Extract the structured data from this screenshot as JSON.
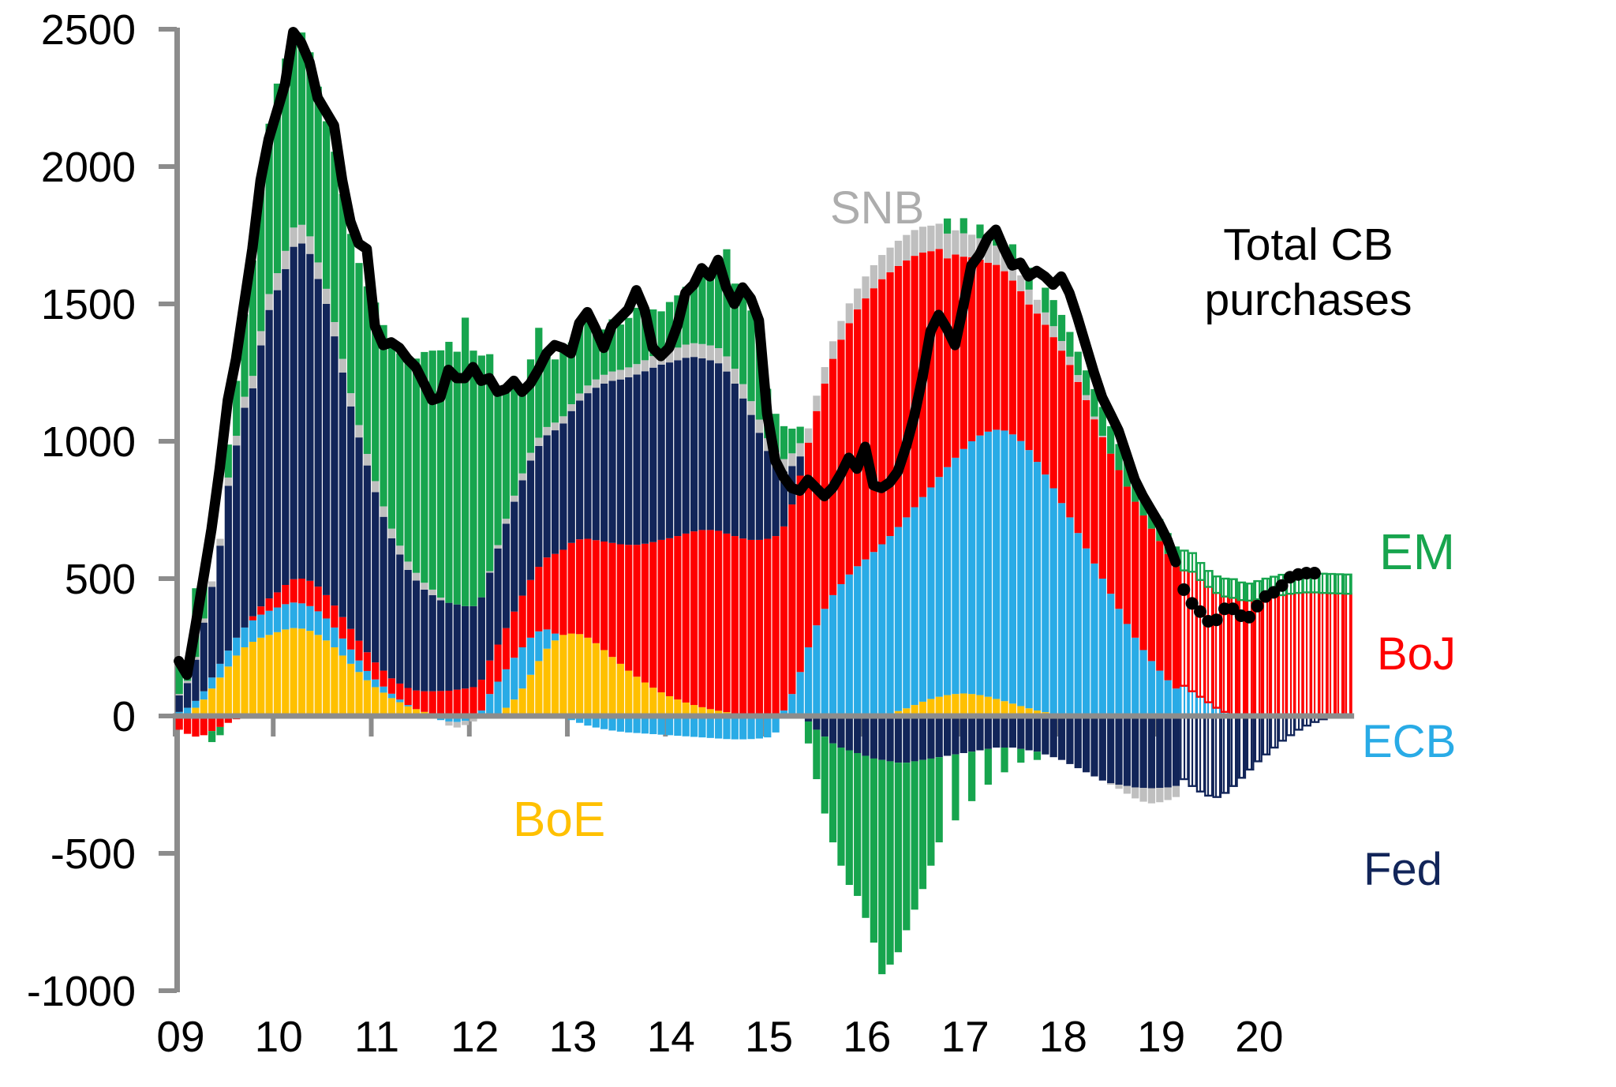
{
  "annotations": {
    "snb": "SNB",
    "total_line": "Total CB purchases",
    "em": "EM",
    "boj": "BoJ",
    "ecb": "ECB",
    "fed": "Fed",
    "boe": "BoE"
  },
  "colors": {
    "em_green": "#17a54e",
    "boj_red": "#fe0000",
    "ecb_blue": "#29abe6",
    "fed_navy": "#122559",
    "boe_yellow": "#ffc000",
    "snb_gray": "#bfbfbf",
    "total_black": "#000000",
    "axis_gray": "#8c8c8c"
  },
  "chart_data": {
    "type": "bar",
    "subtype": "monthly-stacked-bars-with-total-line",
    "x_start": "2009-01",
    "x_freq_months": 1,
    "n_points": 144,
    "x_tick_labels": [
      "09",
      "10",
      "11",
      "12",
      "13",
      "14",
      "15",
      "16",
      "17",
      "18",
      "19",
      "20"
    ],
    "ylim": [
      -1000,
      2500
    ],
    "y_ticks": [
      2500,
      2000,
      1500,
      1000,
      500,
      0,
      -500,
      -1000
    ],
    "grid": false,
    "legend_position": "labels-on-chart",
    "stack_order": [
      "BoE",
      "ECB",
      "BoJ",
      "Fed",
      "SNB",
      "EM"
    ],
    "forecast_start_index": 123,
    "series": [
      {
        "name": "BoE",
        "color": "#ffc000",
        "values": [
          0,
          10,
          30,
          60,
          100,
          140,
          180,
          220,
          250,
          270,
          285,
          295,
          305,
          315,
          320,
          318,
          310,
          295,
          275,
          250,
          220,
          190,
          160,
          130,
          105,
          85,
          65,
          50,
          35,
          25,
          15,
          8,
          3,
          0,
          0,
          0,
          0,
          0,
          0,
          10,
          30,
          60,
          100,
          150,
          200,
          245,
          275,
          295,
          300,
          298,
          285,
          265,
          240,
          215,
          190,
          165,
          143,
          122,
          103,
          86,
          72,
          60,
          49,
          40,
          32,
          25,
          19,
          14,
          10,
          6,
          3,
          1,
          0,
          0,
          0,
          0,
          0,
          0,
          0,
          0,
          0,
          0,
          0,
          0,
          0,
          2,
          5,
          10,
          18,
          28,
          40,
          52,
          62,
          70,
          76,
          80,
          82,
          80,
          76,
          70,
          62,
          54,
          45,
          36,
          28,
          20,
          14,
          9,
          5,
          3,
          1,
          0,
          0,
          0,
          0,
          0,
          0,
          0,
          0,
          0,
          0,
          0,
          0,
          0,
          0,
          0,
          0,
          0,
          0,
          0,
          0,
          0,
          0,
          0,
          0,
          0,
          0,
          0,
          0,
          0,
          0,
          0,
          0,
          0
        ]
      },
      {
        "name": "ECB",
        "color": "#29abe6",
        "values": [
          15,
          20,
          25,
          30,
          40,
          50,
          58,
          65,
          72,
          78,
          84,
          88,
          90,
          92,
          93,
          92,
          90,
          86,
          80,
          72,
          62,
          52,
          42,
          34,
          28,
          22,
          16,
          10,
          5,
          0,
          -5,
          -10,
          -15,
          -20,
          -22,
          -18,
          -10,
          20,
          80,
          115,
          140,
          152,
          150,
          135,
          108,
          70,
          25,
          0,
          -15,
          -25,
          -35,
          -42,
          -48,
          -53,
          -57,
          -60,
          -62,
          -64,
          -66,
          -68,
          -70,
          -72,
          -74,
          -76,
          -78,
          -80,
          -82,
          -84,
          -85,
          -85,
          -84,
          -82,
          -78,
          -60,
          20,
          80,
          160,
          250,
          330,
          390,
          440,
          480,
          515,
          545,
          570,
          595,
          620,
          645,
          670,
          695,
          720,
          745,
          770,
          800,
          830,
          860,
          890,
          920,
          945,
          965,
          980,
          985,
          980,
          965,
          940,
          905,
          865,
          820,
          770,
          720,
          665,
          610,
          555,
          500,
          445,
          390,
          335,
          285,
          240,
          200,
          165,
          130,
          100,
          110,
          90,
          70,
          50,
          30,
          15,
          5,
          0,
          0,
          0,
          0,
          0,
          0,
          0,
          0,
          0,
          0,
          0,
          0,
          0,
          0
        ]
      },
      {
        "name": "BoJ",
        "color": "#fe0000",
        "values": [
          -50,
          -65,
          -75,
          -70,
          -55,
          -40,
          -25,
          -12,
          -3,
          15,
          30,
          45,
          55,
          70,
          85,
          90,
          92,
          90,
          85,
          80,
          78,
          75,
          72,
          68,
          62,
          58,
          56,
          58,
          62,
          68,
          75,
          82,
          88,
          92,
          96,
          100,
          105,
          112,
          122,
          135,
          150,
          168,
          188,
          210,
          235,
          262,
          290,
          310,
          330,
          345,
          360,
          375,
          395,
          415,
          435,
          458,
          480,
          505,
          530,
          555,
          575,
          595,
          615,
          632,
          645,
          652,
          655,
          650,
          645,
          640,
          638,
          640,
          645,
          655,
          670,
          690,
          715,
          745,
          780,
          820,
          860,
          890,
          915,
          935,
          950,
          960,
          965,
          960,
          950,
          935,
          915,
          890,
          860,
          830,
          760,
          740,
          700,
          670,
          640,
          615,
          600,
          580,
          560,
          545,
          530,
          540,
          545,
          550,
          555,
          555,
          550,
          540,
          525,
          515,
          510,
          505,
          500,
          495,
          490,
          482,
          472,
          460,
          445,
          420,
          435,
          425,
          420,
          418,
          420,
          425,
          422,
          420,
          425,
          430,
          435,
          440,
          445,
          448,
          450,
          450,
          448,
          447,
          446,
          445
        ]
      },
      {
        "name": "Fed",
        "color": "#122559",
        "values": [
          60,
          90,
          150,
          250,
          330,
          430,
          600,
          700,
          800,
          830,
          950,
          1050,
          1100,
          1150,
          1210,
          1220,
          1190,
          1120,
          1060,
          980,
          890,
          810,
          740,
          680,
          620,
          560,
          510,
          470,
          430,
          400,
          370,
          350,
          330,
          320,
          310,
          300,
          295,
          300,
          320,
          350,
          380,
          400,
          420,
          435,
          440,
          445,
          450,
          460,
          480,
          505,
          530,
          555,
          575,
          590,
          600,
          610,
          620,
          628,
          635,
          638,
          640,
          640,
          640,
          635,
          625,
          618,
          610,
          590,
          555,
          510,
          455,
          390,
          320,
          260,
          200,
          140,
          70,
          -20,
          -50,
          -75,
          -100,
          -115,
          -125,
          -135,
          -145,
          -155,
          -160,
          -165,
          -170,
          -170,
          -165,
          -160,
          -155,
          -150,
          -145,
          -140,
          -135,
          -130,
          -125,
          -120,
          -115,
          -115,
          -115,
          -120,
          -125,
          -130,
          -140,
          -150,
          -160,
          -175,
          -190,
          -205,
          -220,
          -235,
          -245,
          -250,
          -255,
          -260,
          -262,
          -263,
          -262,
          -260,
          -255,
          -230,
          -255,
          -275,
          -290,
          -295,
          -280,
          -255,
          -225,
          -195,
          -165,
          -140,
          -115,
          -90,
          -70,
          -50,
          -35,
          -22,
          -12,
          -6,
          -2,
          0
        ]
      },
      {
        "name": "SNB",
        "color": "#bfbfbf",
        "values": [
          5,
          8,
          10,
          15,
          20,
          25,
          30,
          35,
          40,
          45,
          52,
          58,
          62,
          66,
          70,
          68,
          64,
          60,
          55,
          52,
          50,
          48,
          45,
          42,
          40,
          38,
          35,
          32,
          30,
          28,
          25,
          20,
          10,
          -15,
          -20,
          -15,
          -10,
          -5,
          5,
          12,
          18,
          22,
          25,
          28,
          30,
          30,
          28,
          26,
          25,
          26,
          28,
          30,
          32,
          34,
          35,
          36,
          38,
          40,
          42,
          44,
          45,
          46,
          48,
          50,
          52,
          54,
          55,
          55,
          54,
          52,
          50,
          48,
          46,
          45,
          45,
          46,
          48,
          52,
          56,
          60,
          64,
          68,
          72,
          76,
          80,
          84,
          88,
          90,
          92,
          93,
          94,
          94,
          93,
          92,
          90,
          88,
          85,
          82,
          78,
          74,
          70,
          66,
          62,
          58,
          54,
          50,
          45,
          40,
          35,
          30,
          25,
          18,
          10,
          5,
          -5,
          -15,
          -28,
          -40,
          -50,
          -55,
          -52,
          -46,
          -40,
          0,
          0,
          0,
          0,
          0,
          0,
          0,
          0,
          0,
          0,
          0,
          0,
          0,
          0,
          0,
          0,
          0,
          0,
          0,
          0,
          0
        ]
      },
      {
        "name": "EM",
        "color": "#17a54e",
        "values": [
          130,
          60,
          250,
          150,
          -40,
          -30,
          120,
          200,
          300,
          420,
          550,
          620,
          690,
          700,
          720,
          700,
          670,
          640,
          610,
          620,
          600,
          580,
          590,
          610,
          650,
          660,
          680,
          700,
          730,
          780,
          840,
          870,
          900,
          950,
          920,
          1050,
          930,
          880,
          790,
          580,
          480,
          400,
          320,
          340,
          400,
          270,
          230,
          250,
          225,
          240,
          255,
          175,
          165,
          190,
          165,
          180,
          205,
          185,
          170,
          150,
          175,
          190,
          210,
          230,
          280,
          250,
          320,
          390,
          310,
          345,
          330,
          300,
          180,
          140,
          120,
          90,
          60,
          -80,
          -180,
          -280,
          -360,
          -430,
          -490,
          -520,
          -590,
          -670,
          -780,
          -740,
          -690,
          -610,
          -540,
          -470,
          -390,
          -310,
          55,
          -240,
          55,
          -180,
          50,
          -130,
          60,
          -90,
          70,
          -50,
          80,
          -30,
          90,
          95,
          95,
          90,
          85,
          90,
          100,
          105,
          100,
          95,
          90,
          85,
          80,
          78,
          80,
          76,
          72,
          72,
          68,
          62,
          58,
          60,
          65,
          68,
          64,
          62,
          66,
          70,
          72,
          74,
          75,
          74,
          72,
          71,
          70,
          70,
          70,
          70
        ]
      }
    ],
    "line": {
      "name": "Total CB purchases",
      "color": "#000000",
      "dotted_from_index": 123,
      "values": [
        200,
        150,
        320,
        500,
        680,
        900,
        1150,
        1300,
        1500,
        1700,
        1950,
        2100,
        2200,
        2300,
        2490,
        2450,
        2380,
        2250,
        2200,
        2150,
        1950,
        1800,
        1720,
        1700,
        1420,
        1350,
        1360,
        1340,
        1300,
        1270,
        1210,
        1150,
        1160,
        1260,
        1230,
        1230,
        1270,
        1220,
        1230,
        1180,
        1190,
        1220,
        1180,
        1210,
        1260,
        1320,
        1350,
        1340,
        1320,
        1430,
        1470,
        1410,
        1340,
        1420,
        1450,
        1480,
        1550,
        1480,
        1340,
        1310,
        1340,
        1420,
        1540,
        1570,
        1630,
        1600,
        1660,
        1560,
        1500,
        1560,
        1520,
        1440,
        1100,
        930,
        870,
        830,
        820,
        860,
        830,
        800,
        830,
        880,
        940,
        900,
        980,
        840,
        830,
        850,
        890,
        980,
        1090,
        1230,
        1400,
        1460,
        1410,
        1350,
        1490,
        1640,
        1680,
        1740,
        1770,
        1700,
        1640,
        1650,
        1600,
        1620,
        1600,
        1570,
        1600,
        1540,
        1450,
        1350,
        1250,
        1160,
        1100,
        1040,
        950,
        860,
        800,
        750,
        700,
        640,
        560,
        460,
        410,
        380,
        345,
        350,
        390,
        390,
        365,
        360,
        400,
        435,
        450,
        475,
        505,
        515,
        520,
        520
      ]
    }
  }
}
